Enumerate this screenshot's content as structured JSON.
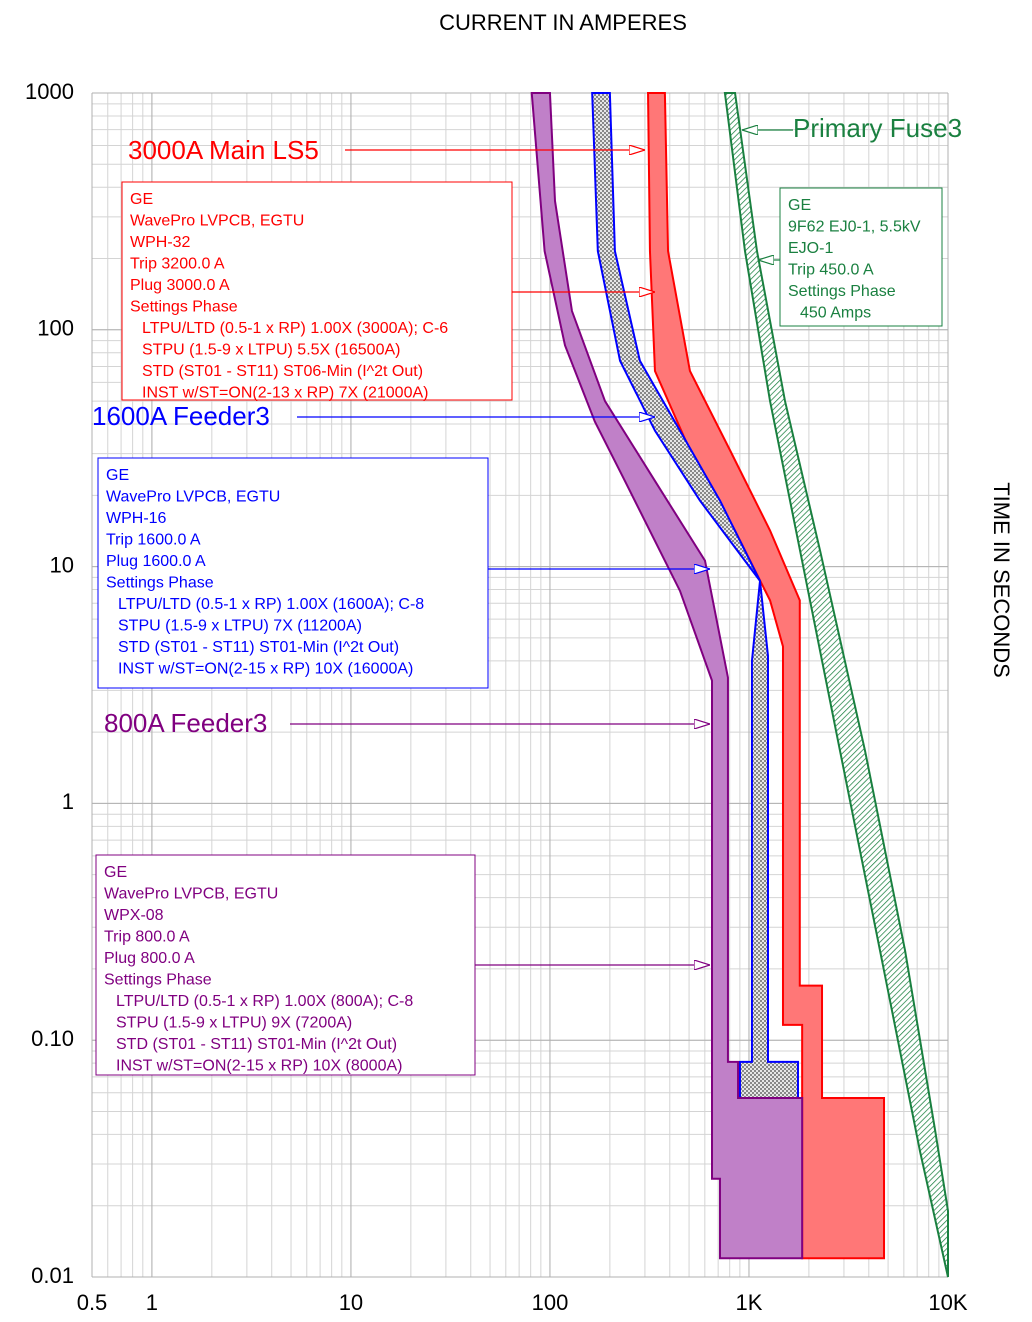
{
  "chart_data": {
    "type": "band",
    "title": "CURRENT IN AMPERES",
    "y_label": "TIME IN SECONDS",
    "x_scale": "log",
    "y_scale": "log",
    "grid": true,
    "xlim": [
      0.5,
      10000
    ],
    "ylim": [
      0.01,
      1000
    ],
    "xticks": [
      0.5,
      1,
      10,
      100,
      {
        "value": 1000,
        "label": "1K"
      },
      {
        "value": 10000,
        "label": "10K"
      }
    ],
    "yticks": [
      0.01,
      {
        "value": 0.1,
        "label": "0.10"
      },
      1,
      10,
      100,
      1000
    ],
    "series": [
      {
        "name": "3000A Main LS5",
        "color": "#ff0000",
        "fill": "#ff7777",
        "info": [
          "GE",
          "WavePro LVPCB, EGTU",
          "WPH-32",
          "Trip 3200.0 A",
          "Plug 3000.0 A",
          "Settings Phase"
        ],
        "settings": [
          "LTPU/LTD (0.5-1 x RP) 1.00X (3000A); C-6",
          "STPU (1.5-9 x LTPU) 5.5X (16500A)",
          "STD (ST01 - ST11) ST06-Min (I^2t Out)",
          "INST w/ST=ON(2-13 x RP) 7X (21000A)"
        ],
        "x": [
          311,
          378,
          392,
          505,
          803,
          1276,
          1800,
          1800,
          2328,
          2328,
          4770,
          4770,
          1850,
          1850,
          1482,
          1482,
          1276,
          851,
          505,
          337,
          318
        ],
        "y": [
          1000,
          1000,
          215,
          67,
          31,
          14.2,
          7.2,
          0.17,
          0.17,
          0.057,
          0.057,
          0.012,
          0.012,
          0.116,
          0.116,
          4.6,
          7.2,
          14.2,
          31,
          67,
          215
        ]
      },
      {
        "name": "1600A Feeder3",
        "color": "#0000ff",
        "pattern": "checker",
        "info": [
          "GE",
          "WavePro LVPCB, EGTU",
          "WPH-16",
          "Trip 1600.0 A",
          "Plug 1600.0 A",
          "Settings Phase"
        ],
        "settings": [
          "LTPU/LTD (0.5-1 x RP) 1.00X (1600A); C-8",
          "STPU (1.5-9 x LTPU) 7X (11200A)",
          "STD (ST01 - ST11) ST01-Min (I^2t Out)",
          "INST w/ST=ON(2-15 x RP) 10X (16000A)"
        ],
        "x": [
          163,
          200,
          212,
          283,
          450,
          715,
          1136,
          1246,
          1246,
          1763,
          1763,
          901,
          901,
          1035,
          1035,
          1136,
          567,
          337,
          225,
          174
        ],
        "y": [
          1000,
          1000,
          215,
          74,
          37.5,
          19,
          8.7,
          4.2,
          0.081,
          0.081,
          0.057,
          0.057,
          0.081,
          0.081,
          4.0,
          8.7,
          19,
          37.5,
          74,
          215
        ]
      },
      {
        "name": "800A Feeder3",
        "color": "#800080",
        "fill": "#c080c8",
        "info": [
          "GE",
          "WavePro LVPCB, EGTU",
          "WPX-08",
          "Trip 800.0 A",
          "Plug 800.0 A",
          "Settings Phase"
        ],
        "settings": [
          "LTPU/LTD (0.5-1 x RP) 1.00X (800A); C-8",
          "STPU (1.5-9 x LTPU) 9X (7200A)",
          "STD (ST01 - ST11) ST01-Min (I^2t Out)",
          "INST w/ST=ON(2-15 x RP) 10X (8000A)"
        ],
        "x": [
          81,
          100,
          106,
          129,
          189,
          337,
          601,
          784,
          784,
          881,
          881,
          1850,
          1850,
          715,
          715,
          652,
          652,
          450,
          238,
          168,
          119,
          94
        ],
        "y": [
          1000,
          1000,
          350,
          120,
          50,
          23,
          10.6,
          3.4,
          0.081,
          0.081,
          0.057,
          0.057,
          0.012,
          0.012,
          0.026,
          0.026,
          3.3,
          7.9,
          23,
          41,
          86,
          215
        ]
      },
      {
        "name": "Primary Fuse3",
        "color": "#1a8040",
        "pattern": "hatch",
        "info": [
          "GE",
          "9F62 EJ0-1, 5.5kV",
          "EJO-1",
          "Trip 450.0 A",
          "Settings Phase"
        ],
        "settings": [
          "450 Amps"
        ],
        "x": [
          757,
          955,
          1276,
          1805,
          2866,
          4550,
          7230,
          10000,
          10000,
          8600,
          6080,
          3828,
          2275,
          1517,
          1097,
          851
        ],
        "y": [
          1000,
          215,
          50,
          11.7,
          1.67,
          0.24,
          0.034,
          0.01,
          0.019,
          0.042,
          0.24,
          1.67,
          11.7,
          50,
          215,
          1000
        ]
      }
    ]
  }
}
